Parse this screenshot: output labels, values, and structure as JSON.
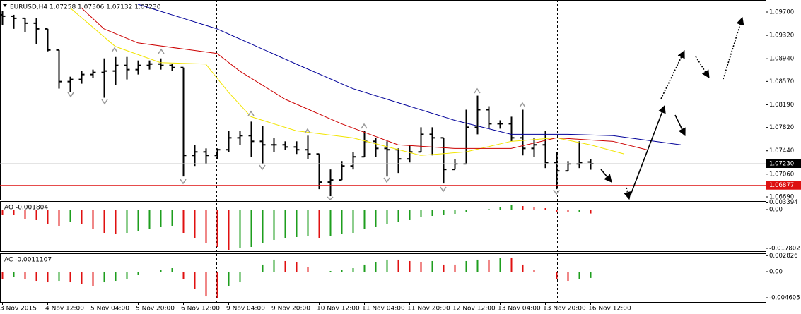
{
  "chart_data": [
    {
      "type": "ohlc",
      "title": "EURUSD,H4  1.07258 1.07306 1.07132 1.07230",
      "categories": [
        "3 Nov 2015",
        null,
        null,
        null,
        "4 Nov 12:00",
        null,
        null,
        null,
        "5 Nov 04:00",
        null,
        null,
        null,
        "5 Nov 20:00",
        null,
        null,
        null,
        "6 Nov 12:00",
        null,
        null,
        null,
        "9 Nov 04:00",
        null,
        null,
        null,
        "9 Nov 20:00",
        null,
        null,
        null,
        "10 Nov 12:00",
        null,
        null,
        null,
        "11 Nov 04:00",
        null,
        null,
        null,
        "11 Nov 20:00",
        null,
        null,
        null,
        "12 Nov 12:00",
        null,
        null,
        null,
        "13 Nov 04:00",
        null,
        null,
        null,
        "13 Nov 20:00",
        null,
        null,
        null,
        "16 Nov 12:00"
      ],
      "open": [
        1.09655,
        1.09632,
        1.09598,
        1.09518,
        1.09426,
        1.09082,
        1.08567,
        1.08602,
        1.08682,
        1.08716,
        1.08739,
        1.08831,
        1.08762,
        1.08831,
        1.08853,
        1.08831,
        1.08796,
        1.07365,
        1.07422,
        1.07365,
        1.07457,
        1.07651,
        1.07686,
        1.07594,
        1.07537,
        1.07537,
        1.07502,
        1.07457,
        1.07388,
        1.0693,
        1.06964,
        1.07193,
        1.07342,
        1.07594,
        1.07479,
        1.07457,
        1.07308,
        1.07422,
        1.07708,
        1.07651,
        1.07136,
        1.07228,
        1.07823,
        1.08109,
        1.0788,
        1.0788,
        1.07651,
        1.07479,
        1.07537,
        1.0725,
        1.07113,
        1.07228,
        1.07258
      ],
      "high": [
        1.09712,
        1.09655,
        1.09598,
        1.09598,
        1.09426,
        1.09082,
        1.08647,
        1.08739,
        1.08762,
        1.08945,
        1.08968,
        1.08968,
        1.08911,
        1.08911,
        1.08945,
        1.08853,
        1.08796,
        1.07537,
        1.07479,
        1.07479,
        1.07766,
        1.07766,
        1.07915,
        1.07846,
        1.07651,
        1.07594,
        1.07594,
        1.07686,
        1.07388,
        1.07136,
        1.07273,
        1.07422,
        1.07766,
        1.07651,
        1.07594,
        1.07479,
        1.07537,
        1.07823,
        1.07823,
        1.07651,
        1.07308,
        1.08109,
        1.08338,
        1.08166,
        1.07937,
        1.07995,
        1.08109,
        1.07651,
        1.07766,
        1.07422,
        1.07273,
        1.07594,
        1.07306
      ],
      "low": [
        1.09483,
        1.09426,
        1.09369,
        1.09174,
        1.0906,
        1.08453,
        1.08395,
        1.08533,
        1.08624,
        1.08304,
        1.0851,
        1.08602,
        1.08682,
        1.08762,
        1.08762,
        1.08739,
        1.07021,
        1.07193,
        1.07228,
        1.07308,
        1.07422,
        1.07537,
        1.07342,
        1.07228,
        1.07422,
        1.07457,
        1.07388,
        1.07308,
        1.06815,
        1.06701,
        1.06964,
        1.07136,
        1.07342,
        1.07342,
        1.07021,
        1.07079,
        1.0725,
        1.07422,
        1.07365,
        1.06907,
        1.07136,
        1.07228,
        1.07708,
        1.078,
        1.078,
        1.07594,
        1.07365,
        1.07342,
        1.07159,
        1.06815,
        1.07113,
        1.07159,
        1.07132
      ],
      "close": [
        1.09632,
        1.09598,
        1.09518,
        1.09426,
        1.09082,
        1.08567,
        1.08602,
        1.08682,
        1.08716,
        1.08739,
        1.08831,
        1.08762,
        1.08831,
        1.08853,
        1.08831,
        1.08796,
        1.07365,
        1.07422,
        1.07365,
        1.07457,
        1.07651,
        1.07686,
        1.07594,
        1.07537,
        1.07537,
        1.07502,
        1.07457,
        1.07388,
        1.0693,
        1.06964,
        1.07193,
        1.07342,
        1.07594,
        1.07479,
        1.07457,
        1.07308,
        1.07422,
        1.07708,
        1.07651,
        1.07136,
        1.07228,
        1.07823,
        1.08109,
        1.0788,
        1.0788,
        1.07651,
        1.07479,
        1.07537,
        1.0725,
        1.07113,
        1.07228,
        1.0725,
        1.0723
      ],
      "color": "#000000",
      "lines": [
        {
          "color": "#f2e500",
          "x": [
            6,
            10,
            14,
            18,
            20,
            22,
            26,
            31,
            37,
            41,
            45,
            49,
            52,
            55
          ],
          "values": [
            1.09769,
            1.0914,
            1.08876,
            1.08853,
            1.08395,
            1.07995,
            1.07766,
            1.07651,
            1.07365,
            1.07422,
            1.07594,
            1.07651,
            1.07537,
            1.07388
          ]
        },
        {
          "color": "#cc0000",
          "x": [
            7,
            9,
            12,
            19,
            21,
            25,
            30,
            35,
            40,
            45,
            49,
            54,
            57
          ],
          "values": [
            1.09769,
            1.09426,
            1.09197,
            1.09025,
            1.08739,
            1.08281,
            1.0788,
            1.07537,
            1.07479,
            1.07479,
            1.07651,
            1.07594,
            1.07457
          ]
        },
        {
          "color": "#000099",
          "x": [
            12,
            19,
            26,
            31,
            36,
            40,
            45,
            50,
            54,
            60
          ],
          "values": [
            1.09827,
            1.09426,
            1.08853,
            1.08453,
            1.08166,
            1.07937,
            1.07708,
            1.07708,
            1.07686,
            1.07537
          ]
        }
      ],
      "ylim": [
        1.06644,
        1.09884
      ],
      "yticks": [
        {
          "value": 1.097,
          "label": "1.09700"
        },
        {
          "value": 1.0932,
          "label": "1.09320"
        },
        {
          "value": 1.0894,
          "label": "1.08940"
        },
        {
          "value": 1.0857,
          "label": "1.08570"
        },
        {
          "value": 1.0819,
          "label": "1.08190"
        },
        {
          "value": 1.0782,
          "label": "1.07820"
        },
        {
          "value": 1.0744,
          "label": "1.07440"
        },
        {
          "value": 1.0706,
          "label": "1.07060"
        },
        {
          "value": 1.0669,
          "label": "1.06690"
        }
      ],
      "last_price": {
        "value": 1.0723,
        "label": "1.07230",
        "color": "#000000"
      },
      "level": {
        "value": 1.06877,
        "label": "1.06877",
        "color": "#dd1111"
      }
    },
    {
      "type": "bar",
      "title": "AO -0.001804",
      "values": [
        -0.00259,
        -0.00259,
        -0.00421,
        -0.00485,
        -0.0068,
        -0.00744,
        -0.00583,
        -0.0068,
        -0.00906,
        -0.01068,
        -0.01133,
        -0.01068,
        -0.01003,
        -0.00906,
        -0.00809,
        -0.00744,
        -0.01068,
        -0.01327,
        -0.01553,
        -0.01715,
        -0.01877,
        -0.0178,
        -0.01715,
        -0.01553,
        -0.01391,
        -0.01327,
        -0.01262,
        -0.0123,
        -0.01327,
        -0.0123,
        -0.01133,
        -0.01068,
        -0.00906,
        -0.00809,
        -0.0068,
        -0.00583,
        -0.00485,
        -0.00356,
        -0.00291,
        -0.00259,
        -0.00194,
        -0.00097,
        -0.00032,
        0.00032,
        0.00097,
        0.00194,
        0.00162,
        0.00097,
        0.00065,
        -0.00097,
        -0.00129,
        -0.00097,
        -0.001804
      ],
      "up_color": "#1e9e1e",
      "down_color": "#e01010",
      "ylim": [
        -0.01942,
        0.00356
      ],
      "yticks": [
        0.003394,
        {
          "value": 0,
          "label": "0.00"
        },
        -0.017802
      ]
    },
    {
      "type": "bar",
      "title": "AC -0.0011107",
      "values": [
        -0.00125,
        -0.00087,
        -0.00125,
        -0.00162,
        -0.00187,
        -0.00162,
        -0.00187,
        -0.00212,
        -0.00249,
        -0.00187,
        -0.00162,
        -0.00125,
        -0.00062,
        0,
        0.00037,
        0.00062,
        -0.00125,
        -0.00311,
        -0.00436,
        -0.00461,
        -0.00249,
        -0.00187,
        0,
        0.00125,
        0.00212,
        0.00187,
        0.00162,
        0.00087,
        0,
        0.00012,
        0.00037,
        0.00062,
        0.00125,
        0.00162,
        0.00212,
        0.00212,
        0.00187,
        0.00162,
        0.00187,
        0.00125,
        0.00125,
        0.00187,
        0.00212,
        0.00212,
        0.00249,
        0.00249,
        0.00125,
        0.00037,
        0,
        -0.00125,
        -0.00162,
        -0.00125,
        -0.0011107
      ],
      "up_color": "#1e9e1e",
      "down_color": "#e01010",
      "ylim": [
        -0.00535,
        0.00311
      ],
      "yticks": [
        0.002826,
        {
          "value": 0,
          "label": "0.00"
        },
        -0.004605
      ]
    }
  ]
}
